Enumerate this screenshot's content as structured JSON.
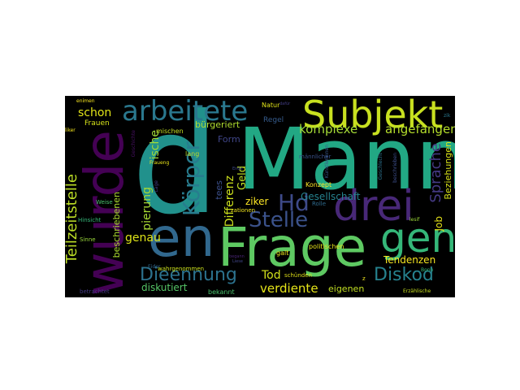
{
  "words": [
    {
      "text": "Mann",
      "color": "#22a884"
    },
    {
      "text": "d",
      "color": "#21918c"
    },
    {
      "text": "wurde",
      "color": "#440154"
    },
    {
      "text": "Frage",
      "color": "#5ec962"
    },
    {
      "text": "en",
      "color": "#31688e"
    },
    {
      "text": "Subjekt",
      "color": "#c8e020"
    },
    {
      "text": "gen",
      "color": "#35b779"
    },
    {
      "text": "drei",
      "color": "#482878"
    },
    {
      "text": "arbeitete",
      "color": "#2a788e"
    },
    {
      "text": "Körper",
      "color": "#287c8e"
    },
    {
      "text": "Hd",
      "color": "#3e4a89"
    },
    {
      "text": "Stelle",
      "color": "#3b528b"
    },
    {
      "text": "Dieennung",
      "color": "#2c728e"
    },
    {
      "text": "Diskod",
      "color": "#26828e"
    },
    {
      "text": "Teilzeitstelle",
      "color": "#bddf26"
    },
    {
      "text": "komplexe",
      "color": "#a5db36"
    },
    {
      "text": "angefangen",
      "color": "#b5de2b"
    },
    {
      "text": "Sprache",
      "color": "#443983"
    },
    {
      "text": "Tod",
      "color": "#d2e21b"
    },
    {
      "text": "verdiente",
      "color": "#e5e419"
    },
    {
      "text": "Differenz",
      "color": "#cde11d"
    },
    {
      "text": "schon",
      "color": "#e2e418"
    },
    {
      "text": "genau",
      "color": "#dde318"
    },
    {
      "text": "pierung",
      "color": "#a8db34"
    },
    {
      "text": "ische",
      "color": "#a0da39"
    },
    {
      "text": "bürgeriert",
      "color": "#b0dd2f"
    },
    {
      "text": "Geld",
      "color": "#c0df25"
    },
    {
      "text": "ziker",
      "color": "#fde725"
    },
    {
      "text": "Gesellschaft",
      "color": "#26828e"
    },
    {
      "text": "Job",
      "color": "#e7e419"
    },
    {
      "text": "Beziehungen",
      "color": "#d8e219"
    },
    {
      "text": "Tendenzen",
      "color": "#f6e620"
    },
    {
      "text": "diskutiert",
      "color": "#56c667"
    },
    {
      "text": "beschriebenen",
      "color": "#addc30"
    },
    {
      "text": "Form",
      "color": "#404688"
    },
    {
      "text": "tees",
      "color": "#3c508b"
    },
    {
      "text": "Regel",
      "color": "#365c8d"
    },
    {
      "text": "Konzept",
      "color": "#fde725"
    },
    {
      "text": "eigenen",
      "color": "#c2df23"
    },
    {
      "text": "Frauen",
      "color": "#d5e21a"
    },
    {
      "text": "mischen",
      "color": "#c5e021"
    },
    {
      "text": "lang",
      "color": "#b8de29"
    },
    {
      "text": "Natur",
      "color": "#e0e318"
    },
    {
      "text": "politischen",
      "color": "#e8e419"
    },
    {
      "text": "zationen",
      "color": "#f1e51d"
    },
    {
      "text": "galt",
      "color": "#eae51a"
    },
    {
      "text": "Rolle",
      "color": "#2f6b8e"
    },
    {
      "text": "schünden",
      "color": "#ddde18"
    },
    {
      "text": "männlicher",
      "color": "#3a548c"
    },
    {
      "text": "wahrgenommen",
      "color": "#cbe11e"
    },
    {
      "text": "bekannt",
      "color": "#4ac16d"
    },
    {
      "text": "betrachtet",
      "color": "#443a83"
    },
    {
      "text": "Geschichte",
      "color": "#471063"
    },
    {
      "text": "Hinsicht",
      "color": "#35b779"
    },
    {
      "text": "Weise",
      "color": "#4ac16d"
    },
    {
      "text": "Sinne",
      "color": "#9bd93c"
    },
    {
      "text": "enimen",
      "color": "#f8e621"
    },
    {
      "text": "Fraueng",
      "color": "#eae51a"
    },
    {
      "text": "liker",
      "color": "#f4e61e"
    },
    {
      "text": "Erzählische",
      "color": "#c8e020"
    },
    {
      "text": "Bonn",
      "color": "#35b779"
    },
    {
      "text": "lesif",
      "color": "#9fda3a"
    },
    {
      "text": "Künstlerinnen",
      "color": "#38588c"
    },
    {
      "text": "Geschlecht",
      "color": "#2c728e"
    },
    {
      "text": "beschrieben",
      "color": "#3d4e8a"
    },
    {
      "text": "Lage",
      "color": "#433e85"
    },
    {
      "text": "Eider",
      "color": "#31688e"
    },
    {
      "text": "z",
      "color": "#f1e51d"
    },
    {
      "text": "zik",
      "color": "#2a788e"
    },
    {
      "text": "dafür",
      "color": "#433d84"
    },
    {
      "text": "Ende",
      "color": "#3e4989"
    },
    {
      "text": "Liese",
      "color": "#404588"
    },
    {
      "text": "begann",
      "color": "#482475"
    },
    {
      "text": "de",
      "color": "#3f4889"
    }
  ]
}
